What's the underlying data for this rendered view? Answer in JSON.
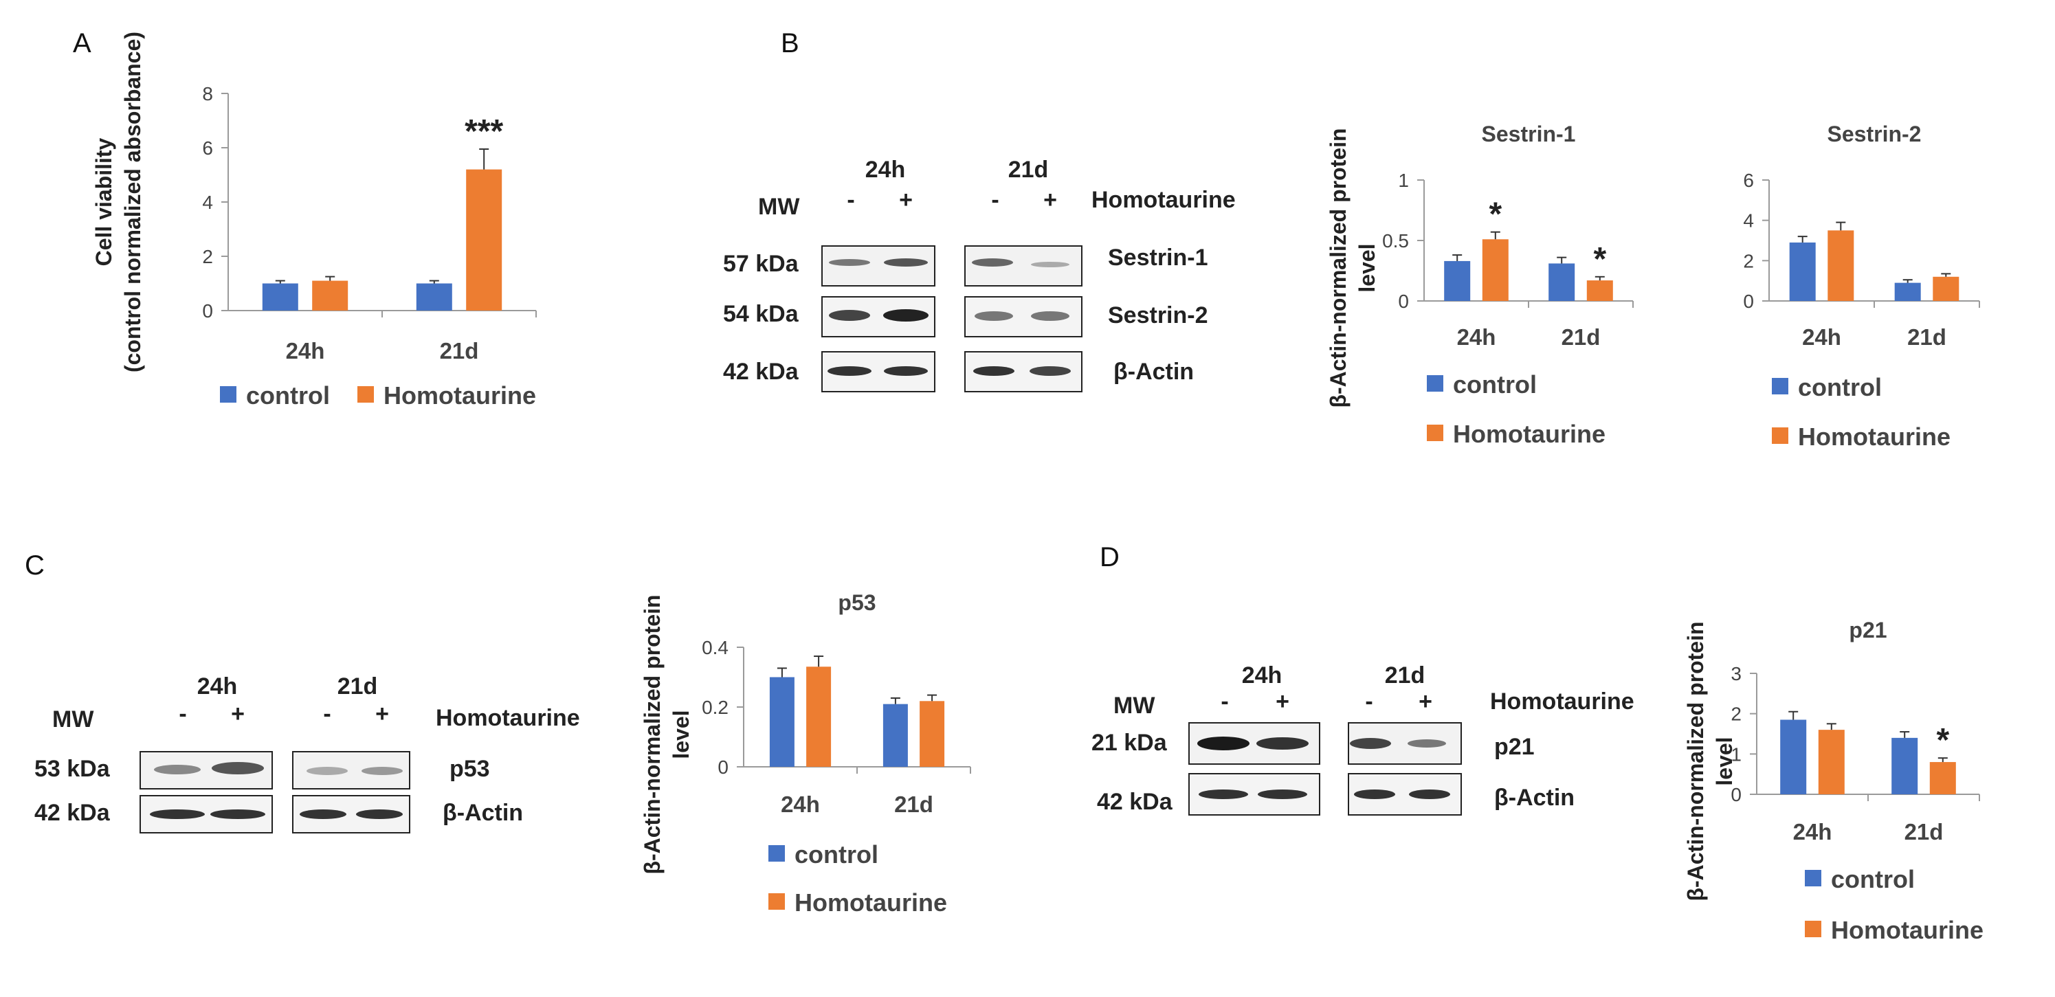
{
  "panels": {
    "A": {
      "label": "A"
    },
    "B": {
      "label": "B"
    },
    "C": {
      "label": "C"
    },
    "D": {
      "label": "D"
    }
  },
  "blots": {
    "B": {
      "times": [
        "24h",
        "21d"
      ],
      "mw": "MW",
      "treatment": "Homotaurine",
      "signs": [
        "-",
        "+",
        "-",
        "+"
      ],
      "rows": [
        {
          "mw": "57 kDa",
          "protein": "Sestrin-1"
        },
        {
          "mw": "54 kDa",
          "protein": "Sestrin-2"
        },
        {
          "mw": "42 kDa",
          "protein": "β-Actin"
        }
      ]
    },
    "C": {
      "times": [
        "24h",
        "21d"
      ],
      "mw": "MW",
      "treatment": "Homotaurine",
      "signs": [
        "-",
        "+",
        "-",
        "+"
      ],
      "rows": [
        {
          "mw": "53 kDa",
          "protein": "p53"
        },
        {
          "mw": "42 kDa",
          "protein": "β-Actin"
        }
      ]
    },
    "D": {
      "times": [
        "24h",
        "21d"
      ],
      "mw": "MW",
      "treatment": "Homotaurine",
      "signs": [
        "-",
        "+",
        "-",
        "+"
      ],
      "rows": [
        {
          "mw": "21 kDa",
          "protein": "p21"
        },
        {
          "mw": "42 kDa",
          "protein": "β-Actin"
        }
      ]
    }
  },
  "colors": {
    "control": "#4472c4",
    "homotaurine": "#ed7d31"
  },
  "chart_data": [
    {
      "id": "A",
      "type": "bar",
      "title": "",
      "ylabel": [
        "Cell viability",
        "(control normalized absorbance)"
      ],
      "categories": [
        "24h",
        "21d"
      ],
      "series": [
        {
          "name": "control",
          "values": [
            1.0,
            1.0
          ],
          "errors": [
            0.1,
            0.1
          ]
        },
        {
          "name": "Homotaurine",
          "values": [
            1.1,
            5.2
          ],
          "errors": [
            0.15,
            0.75
          ]
        }
      ],
      "ylim": [
        0,
        8
      ],
      "yticks": [
        "0",
        "2",
        "4",
        "6",
        "8"
      ],
      "yticks_v": [
        0,
        2,
        4,
        6,
        8
      ],
      "annotations": [
        {
          "category": 1,
          "series": 1,
          "text": "***"
        }
      ],
      "legend": "bottom"
    },
    {
      "id": "B1",
      "type": "bar",
      "title": "Sestrin-1",
      "ylabel": [
        "β-Actin-normalized protein",
        "level"
      ],
      "categories": [
        "24h",
        "21d"
      ],
      "series": [
        {
          "name": "control",
          "values": [
            0.33,
            0.31
          ],
          "errors": [
            0.05,
            0.05
          ]
        },
        {
          "name": "Homotaurine",
          "values": [
            0.51,
            0.17
          ],
          "errors": [
            0.06,
            0.03
          ]
        }
      ],
      "ylim": [
        0,
        1
      ],
      "yticks": [
        "0",
        "0.5",
        "1"
      ],
      "yticks_v": [
        0,
        0.5,
        1
      ],
      "annotations": [
        {
          "category": 0,
          "series": 1,
          "text": "*"
        },
        {
          "category": 1,
          "series": 1,
          "text": "*"
        }
      ],
      "legend": "bottom"
    },
    {
      "id": "B2",
      "type": "bar",
      "title": "Sestrin-2",
      "ylabel": [],
      "categories": [
        "24h",
        "21d"
      ],
      "series": [
        {
          "name": "control",
          "values": [
            2.9,
            0.9
          ],
          "errors": [
            0.3,
            0.15
          ]
        },
        {
          "name": "Homotaurine",
          "values": [
            3.5,
            1.2
          ],
          "errors": [
            0.4,
            0.15
          ]
        }
      ],
      "ylim": [
        0,
        6
      ],
      "yticks": [
        "0",
        "2",
        "4",
        "6"
      ],
      "yticks_v": [
        0,
        2,
        4,
        6
      ],
      "annotations": [],
      "legend": "bottom"
    },
    {
      "id": "C",
      "type": "bar",
      "title": "p53",
      "ylabel": [
        "β-Actin-normalized protein",
        "level"
      ],
      "categories": [
        "24h",
        "21d"
      ],
      "series": [
        {
          "name": "control",
          "values": [
            0.3,
            0.21
          ],
          "errors": [
            0.03,
            0.02
          ]
        },
        {
          "name": "Homotaurine",
          "values": [
            0.335,
            0.22
          ],
          "errors": [
            0.035,
            0.02
          ]
        }
      ],
      "ylim": [
        0,
        0.4
      ],
      "yticks": [
        "0",
        "0.2",
        "0.4"
      ],
      "yticks_v": [
        0,
        0.2,
        0.4
      ],
      "annotations": [],
      "legend": "bottom"
    },
    {
      "id": "D",
      "type": "bar",
      "title": "p21",
      "ylabel": [
        "β-Actin-normalized protein",
        "level"
      ],
      "categories": [
        "24h",
        "21d"
      ],
      "series": [
        {
          "name": "control",
          "values": [
            1.85,
            1.4
          ],
          "errors": [
            0.2,
            0.15
          ]
        },
        {
          "name": "Homotaurine",
          "values": [
            1.6,
            0.8
          ],
          "errors": [
            0.15,
            0.1
          ]
        }
      ],
      "ylim": [
        0,
        3
      ],
      "yticks": [
        "0",
        "1",
        "2",
        "3"
      ],
      "yticks_v": [
        0,
        1,
        2,
        3
      ],
      "annotations": [
        {
          "category": 1,
          "series": 1,
          "text": "*"
        }
      ],
      "legend": "bottom"
    }
  ]
}
